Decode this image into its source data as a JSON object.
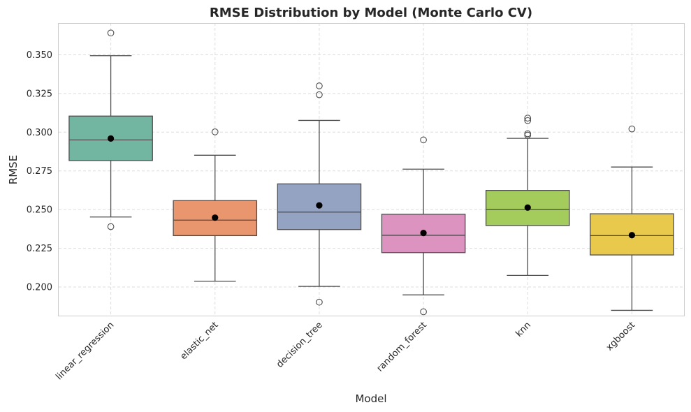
{
  "chart_data": {
    "type": "box",
    "title": "RMSE Distribution by Model (Monte Carlo CV)",
    "xlabel": "Model",
    "ylabel": "RMSE",
    "ylim": [
      0.1815,
      0.3705
    ],
    "yticks": [
      "0.200",
      "0.225",
      "0.250",
      "0.275",
      "0.300",
      "0.325",
      "0.350"
    ],
    "grid": true,
    "categories": [
      "linear_regression",
      "elastic_net",
      "decision_tree",
      "random_forest",
      "knn",
      "xgboost"
    ],
    "boxes": [
      {
        "category": "linear_regression",
        "color": "#72b6a1",
        "whisker_low": 0.2452,
        "q1": 0.2817,
        "median": 0.295,
        "q3": 0.3104,
        "whisker_high": 0.3494,
        "mean": 0.2959,
        "outliers": [
          0.3641,
          0.239
        ]
      },
      {
        "category": "elastic_net",
        "color": "#e9956e",
        "whisker_low": 0.2037,
        "q1": 0.2332,
        "median": 0.2432,
        "q3": 0.2558,
        "whisker_high": 0.2851,
        "mean": 0.2448,
        "outliers": [
          0.3002
        ]
      },
      {
        "category": "decision_tree",
        "color": "#95a3c3",
        "whisker_low": 0.2004,
        "q1": 0.2371,
        "median": 0.2484,
        "q3": 0.2666,
        "whisker_high": 0.3076,
        "mean": 0.2527,
        "outliers": [
          0.3299,
          0.3242,
          0.1902
        ]
      },
      {
        "category": "random_forest",
        "color": "#dc93c0",
        "whisker_low": 0.1949,
        "q1": 0.2222,
        "median": 0.2334,
        "q3": 0.247,
        "whisker_high": 0.2761,
        "mean": 0.2349,
        "outliers": [
          0.295,
          0.184
        ]
      },
      {
        "category": "knn",
        "color": "#a4cc5c",
        "whisker_low": 0.2075,
        "q1": 0.2397,
        "median": 0.2502,
        "q3": 0.2624,
        "whisker_high": 0.296,
        "mean": 0.2513,
        "outliers": [
          0.3091,
          0.3075,
          0.299,
          0.2981
        ]
      },
      {
        "category": "xgboost",
        "color": "#e8c94c",
        "whisker_low": 0.1849,
        "q1": 0.2207,
        "median": 0.2332,
        "q3": 0.2473,
        "whisker_high": 0.2775,
        "mean": 0.2335,
        "outliers": [
          0.3021
        ]
      }
    ]
  }
}
